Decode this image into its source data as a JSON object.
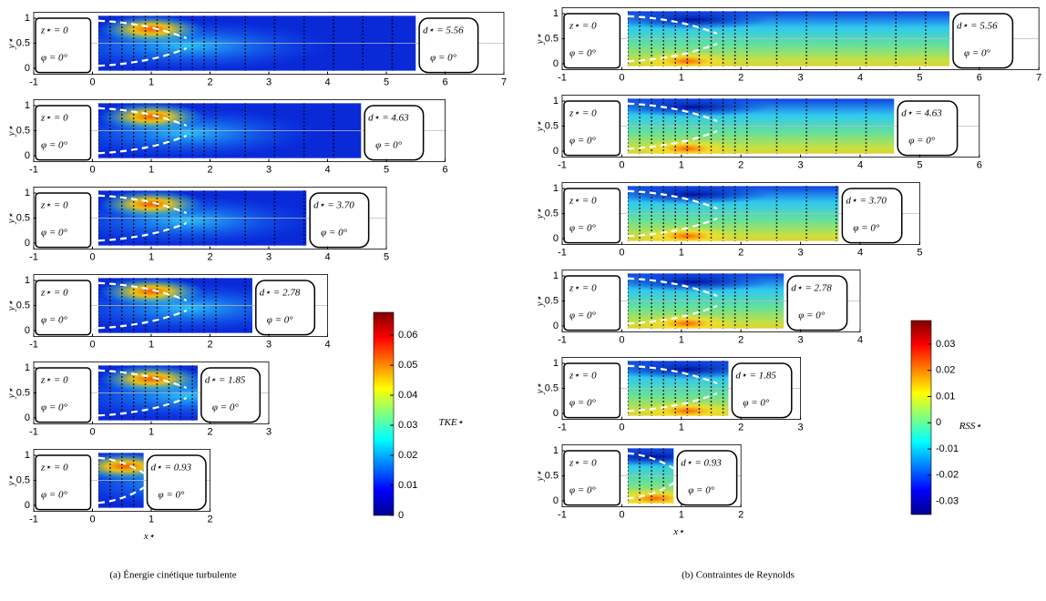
{
  "panels": [
    {
      "caption": "(a) Énergie cinétique turbulente",
      "kind": "tke",
      "xlabel": "x⋆",
      "ylabel": "y⋆",
      "colorbar": {
        "label": "TKE⋆",
        "range": [
          0,
          0.0676
        ],
        "ticks": [
          0,
          0.01,
          0.02,
          0.03,
          0.04,
          0.05,
          0.06
        ]
      },
      "subplots": [
        {
          "z": "z⋆ = 0",
          "phi": "φ = 0°",
          "d": "d⋆ = 5.56",
          "xticks": [
            -1,
            0,
            1,
            2,
            3,
            4,
            5,
            6,
            7
          ],
          "yticks": [
            0,
            0.5,
            1
          ]
        },
        {
          "z": "z⋆ = 0",
          "phi": "φ = 0°",
          "d": "d⋆ = 4.63",
          "xticks": [
            -1,
            0,
            1,
            2,
            3,
            4,
            5,
            6
          ],
          "yticks": [
            0,
            0.5,
            1
          ]
        },
        {
          "z": "z⋆ = 0",
          "phi": "φ = 0°",
          "d": "d⋆ = 3.70",
          "xticks": [
            -1,
            0,
            1,
            2,
            3,
            4,
            5
          ],
          "yticks": [
            0,
            0.5,
            1
          ]
        },
        {
          "z": "z⋆ = 0",
          "phi": "φ = 0°",
          "d": "d⋆ = 2.78",
          "xticks": [
            -1,
            0,
            1,
            2,
            3,
            4
          ],
          "yticks": [
            0,
            0.5,
            1
          ]
        },
        {
          "z": "z⋆ = 0",
          "phi": "φ = 0°",
          "d": "d⋆ = 1.85",
          "xticks": [
            -1,
            0,
            1,
            2,
            3
          ],
          "yticks": [
            0,
            0.5,
            1
          ]
        },
        {
          "z": "z⋆ = 0",
          "phi": "φ = 0°",
          "d": "d⋆ = 0.93",
          "xticks": [
            -1,
            0,
            1,
            2
          ],
          "yticks": [
            0,
            0.5,
            1
          ]
        }
      ]
    },
    {
      "caption": "(b) Contraintes de Reynolds",
      "kind": "rss",
      "xlabel": "x⋆",
      "ylabel": "y⋆",
      "colorbar": {
        "label": "RSS⋆",
        "range": [
          -0.035,
          0.039
        ],
        "ticks": [
          -0.03,
          -0.02,
          -0.01,
          0,
          0.01,
          0.02,
          0.03
        ]
      },
      "subplots": [
        {
          "z": "z⋆ = 0",
          "phi": "φ = 0°",
          "d": "d⋆ = 5.56",
          "xticks": [
            -1,
            0,
            1,
            2,
            3,
            4,
            5,
            6,
            7
          ],
          "yticks": [
            0,
            0.5,
            1
          ]
        },
        {
          "z": "z⋆ = 0",
          "phi": "φ = 0°",
          "d": "d⋆ = 4.63",
          "xticks": [
            -1,
            0,
            1,
            2,
            3,
            4,
            5,
            6
          ],
          "yticks": [
            0,
            0.5,
            1
          ]
        },
        {
          "z": "z⋆ = 0",
          "phi": "φ = 0°",
          "d": "d⋆ = 3.70",
          "xticks": [
            -1,
            0,
            1,
            2,
            3,
            4,
            5
          ],
          "yticks": [
            0,
            0.5,
            1
          ]
        },
        {
          "z": "z⋆ = 0",
          "phi": "φ = 0°",
          "d": "d⋆ = 2.78",
          "xticks": [
            -1,
            0,
            1,
            2,
            3,
            4
          ],
          "yticks": [
            0,
            0.5,
            1
          ]
        },
        {
          "z": "z⋆ = 0",
          "phi": "φ = 0°",
          "d": "d⋆ = 1.85",
          "xticks": [
            -1,
            0,
            1,
            2,
            3
          ],
          "yticks": [
            0,
            0.5,
            1
          ]
        },
        {
          "z": "z⋆ = 0",
          "phi": "φ = 0°",
          "d": "d⋆ = 0.93",
          "xticks": [
            -1,
            0,
            1,
            2
          ],
          "yticks": [
            0,
            0.5,
            1
          ]
        }
      ]
    }
  ]
}
